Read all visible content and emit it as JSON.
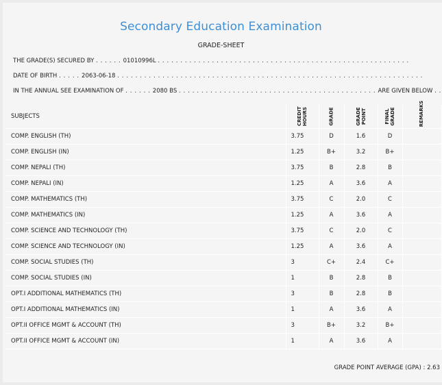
{
  "header": {
    "title": "Secondary Education Examination",
    "subtitle": "GRADE-SHEET"
  },
  "info": {
    "secured_label": "THE GRADE(S) SECURED BY",
    "symbol_no": "01010996L",
    "dob_label": "DATE OF BIRTH",
    "dob": "2063-06-18",
    "exam_label": "IN THE ANNUAL SEE EXAMINATION OF",
    "exam_year": "2080 BS",
    "given_below": "ARE GIVEN BELOW"
  },
  "columns": {
    "subjects": "SUBJECTS",
    "credit_hours": "CREDIT HOURS",
    "grade": "GRADE",
    "grade_point": "GRADE POINT",
    "final_grade": "FINAL GRADE",
    "remarks": "REMARKS"
  },
  "rows": [
    {
      "subject": "COMP. ENGLISH (TH)",
      "credit": "3.75",
      "grade": "D",
      "point": "1.6",
      "final": "D"
    },
    {
      "subject": "COMP. ENGLISH (IN)",
      "credit": "1.25",
      "grade": "B+",
      "point": "3.2",
      "final": "B+"
    },
    {
      "subject": "COMP. NEPALI (TH)",
      "credit": "3.75",
      "grade": "B",
      "point": "2.8",
      "final": "B"
    },
    {
      "subject": "COMP. NEPALI (IN)",
      "credit": "1.25",
      "grade": "A",
      "point": "3.6",
      "final": "A"
    },
    {
      "subject": "COMP. MATHEMATICS (TH)",
      "credit": "3.75",
      "grade": "C",
      "point": "2.0",
      "final": "C"
    },
    {
      "subject": "COMP. MATHEMATICS (IN)",
      "credit": "1.25",
      "grade": "A",
      "point": "3.6",
      "final": "A"
    },
    {
      "subject": "COMP. SCIENCE AND TECHNOLOGY (TH)",
      "credit": "3.75",
      "grade": "C",
      "point": "2.0",
      "final": "C"
    },
    {
      "subject": "COMP. SCIENCE AND TECHNOLOGY (IN)",
      "credit": "1.25",
      "grade": "A",
      "point": "3.6",
      "final": "A"
    },
    {
      "subject": "COMP. SOCIAL STUDIES (TH)",
      "credit": "3",
      "grade": "C+",
      "point": "2.4",
      "final": "C+"
    },
    {
      "subject": "COMP. SOCIAL STUDIES (IN)",
      "credit": "1",
      "grade": "B",
      "point": "2.8",
      "final": "B"
    },
    {
      "subject": "OPT.I ADDITIONAL MATHEMATICS (TH)",
      "credit": "3",
      "grade": "B",
      "point": "2.8",
      "final": "B"
    },
    {
      "subject": "OPT.I ADDITIONAL MATHEMATICS (IN)",
      "credit": "1",
      "grade": "A",
      "point": "3.6",
      "final": "A"
    },
    {
      "subject": "OPT.II OFFICE MGMT & ACCOUNT (TH)",
      "credit": "3",
      "grade": "B+",
      "point": "3.2",
      "final": "B+"
    },
    {
      "subject": "OPT.II OFFICE MGMT & ACCOUNT (IN)",
      "credit": "1",
      "grade": "A",
      "point": "3.6",
      "final": "A"
    }
  ],
  "gpa": {
    "label": "GRADE POINT AVERAGE (GPA) :",
    "value": "2.63"
  }
}
